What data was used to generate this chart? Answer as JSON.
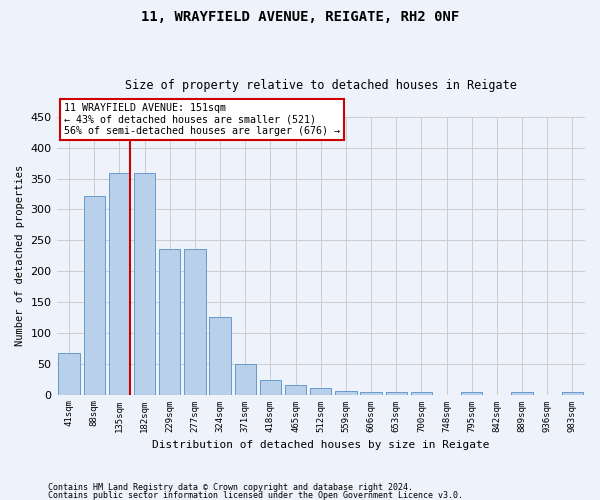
{
  "title1": "11, WRAYFIELD AVENUE, REIGATE, RH2 0NF",
  "title2": "Size of property relative to detached houses in Reigate",
  "xlabel": "Distribution of detached houses by size in Reigate",
  "ylabel": "Number of detached properties",
  "categories": [
    "41sqm",
    "88sqm",
    "135sqm",
    "182sqm",
    "229sqm",
    "277sqm",
    "324sqm",
    "371sqm",
    "418sqm",
    "465sqm",
    "512sqm",
    "559sqm",
    "606sqm",
    "653sqm",
    "700sqm",
    "748sqm",
    "795sqm",
    "842sqm",
    "889sqm",
    "936sqm",
    "983sqm"
  ],
  "values": [
    67,
    321,
    359,
    359,
    235,
    235,
    126,
    50,
    24,
    15,
    10,
    6,
    4,
    4,
    4,
    0,
    4,
    0,
    4,
    0,
    4
  ],
  "bar_color": "#b8d0ea",
  "bar_edge_color": "#6699cc",
  "grid_color": "#cccccc",
  "background_color": "#eef2fa",
  "vline_color": "#cc0000",
  "vline_x_index": 2,
  "annotation_title": "11 WRAYFIELD AVENUE: 151sqm",
  "annotation_line1": "← 43% of detached houses are smaller (521)",
  "annotation_line2": "56% of semi-detached houses are larger (676) →",
  "annotation_box_facecolor": "white",
  "annotation_box_edgecolor": "#cc0000",
  "footnote1": "Contains HM Land Registry data © Crown copyright and database right 2024.",
  "footnote2": "Contains public sector information licensed under the Open Government Licence v3.0.",
  "ylim": [
    0,
    450
  ],
  "yticks": [
    0,
    50,
    100,
    150,
    200,
    250,
    300,
    350,
    400,
    450
  ]
}
